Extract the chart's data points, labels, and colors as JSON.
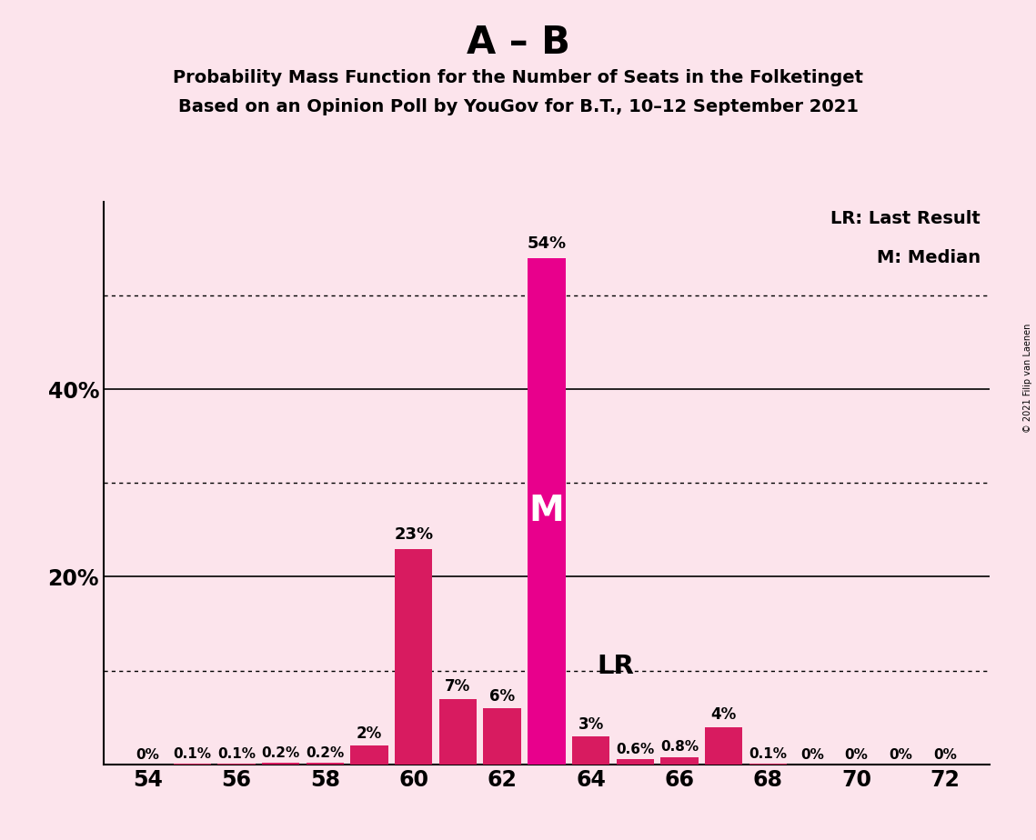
{
  "title_main": "A – B",
  "title_sub1": "Probability Mass Function for the Number of Seats in the Folketinget",
  "title_sub2": "Based on an Opinion Poll by YouGov for B.T., 10–12 September 2021",
  "copyright_text": "© 2021 Filip van Laenen",
  "background_color": "#fce4ec",
  "bar_color_crimson": "#d81b60",
  "bar_color_magenta": "#e8008c",
  "seats": [
    54,
    55,
    56,
    57,
    58,
    59,
    60,
    61,
    62,
    63,
    64,
    65,
    66,
    67,
    68,
    69,
    70,
    71,
    72
  ],
  "values": [
    0.0,
    0.1,
    0.1,
    0.2,
    0.2,
    2.0,
    23.0,
    7.0,
    6.0,
    54.0,
    3.0,
    0.6,
    0.8,
    4.0,
    0.1,
    0.0,
    0.0,
    0.0,
    0.0
  ],
  "label_texts": [
    "0%",
    "0.1%",
    "0.1%",
    "0.2%",
    "0.2%",
    "2%",
    "23%",
    "7%",
    "6%",
    "54%",
    "3%",
    "0.6%",
    "0.8%",
    "4%",
    "0.1%",
    "0%",
    "0%",
    "0%",
    "0%"
  ],
  "median_seat": 63,
  "lr_seat": 64,
  "ymax": 60,
  "dotted_lines": [
    10,
    30,
    50
  ],
  "solid_lines": [
    20,
    40
  ],
  "xmin": 53,
  "xmax": 73,
  "xticks": [
    54,
    56,
    58,
    60,
    62,
    64,
    66,
    68,
    70,
    72
  ]
}
